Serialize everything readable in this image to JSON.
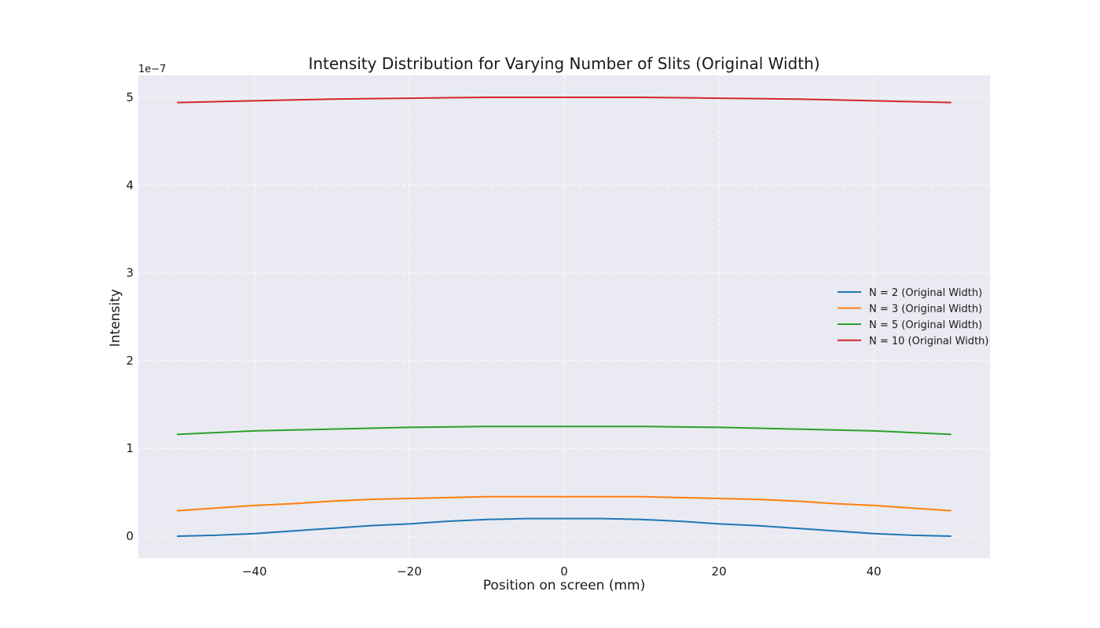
{
  "chart_data": {
    "type": "line",
    "title": "Intensity Distribution for Varying Number of Slits (Original Width)",
    "xlabel": "Position on screen (mm)",
    "ylabel": "Intensity",
    "y_offset_text": "1e−7",
    "xlim": [
      -55,
      55
    ],
    "ylim": [
      -0.25,
      5.25
    ],
    "y_unit_multiplier": 1e-07,
    "x_ticks": [
      -40,
      -20,
      0,
      20,
      40
    ],
    "x_tick_labels": [
      "−40",
      "−20",
      "0",
      "20",
      "40"
    ],
    "y_ticks": [
      0,
      1,
      2,
      3,
      4,
      5
    ],
    "y_tick_labels": [
      "0",
      "1",
      "2",
      "3",
      "4",
      "5"
    ],
    "grid": true,
    "legend_position": "center-right",
    "x": [
      -50,
      -45,
      -40,
      -35,
      -30,
      -25,
      -20,
      -15,
      -10,
      -5,
      0,
      5,
      10,
      15,
      20,
      25,
      30,
      35,
      40,
      45,
      50
    ],
    "series": [
      {
        "name": "N = 2 (Original Width)",
        "color": "#1f77b4",
        "values": [
          0.0,
          0.01,
          0.03,
          0.06,
          0.09,
          0.12,
          0.14,
          0.17,
          0.19,
          0.2,
          0.2,
          0.2,
          0.19,
          0.17,
          0.14,
          0.12,
          0.09,
          0.06,
          0.03,
          0.01,
          0.0
        ]
      },
      {
        "name": "N = 3 (Original Width)",
        "color": "#ff7f0e",
        "values": [
          0.29,
          0.32,
          0.35,
          0.37,
          0.4,
          0.42,
          0.43,
          0.44,
          0.45,
          0.45,
          0.45,
          0.45,
          0.45,
          0.44,
          0.43,
          0.42,
          0.4,
          0.37,
          0.35,
          0.32,
          0.29
        ]
      },
      {
        "name": "N = 5 (Original Width)",
        "color": "#2ca02c",
        "values": [
          1.16,
          1.18,
          1.2,
          1.21,
          1.22,
          1.23,
          1.24,
          1.245,
          1.25,
          1.25,
          1.25,
          1.25,
          1.25,
          1.245,
          1.24,
          1.23,
          1.22,
          1.21,
          1.2,
          1.18,
          1.16
        ]
      },
      {
        "name": "N = 10 (Original Width)",
        "color": "#d62728",
        "values": [
          4.94,
          4.95,
          4.96,
          4.97,
          4.98,
          4.985,
          4.99,
          4.995,
          5.0,
          5.0,
          5.0,
          5.0,
          5.0,
          4.995,
          4.99,
          4.985,
          4.98,
          4.97,
          4.96,
          4.95,
          4.94
        ]
      }
    ]
  }
}
